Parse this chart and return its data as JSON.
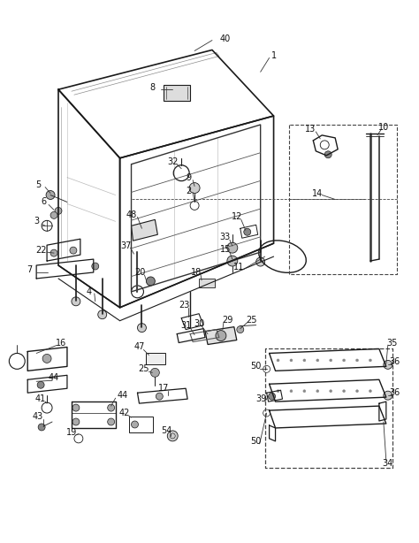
{
  "bg_color": "#ffffff",
  "lc": "#1a1a1a",
  "dc": "#444444",
  "gc": "#888888",
  "figsize": [
    4.74,
    6.14
  ],
  "dpi": 100
}
